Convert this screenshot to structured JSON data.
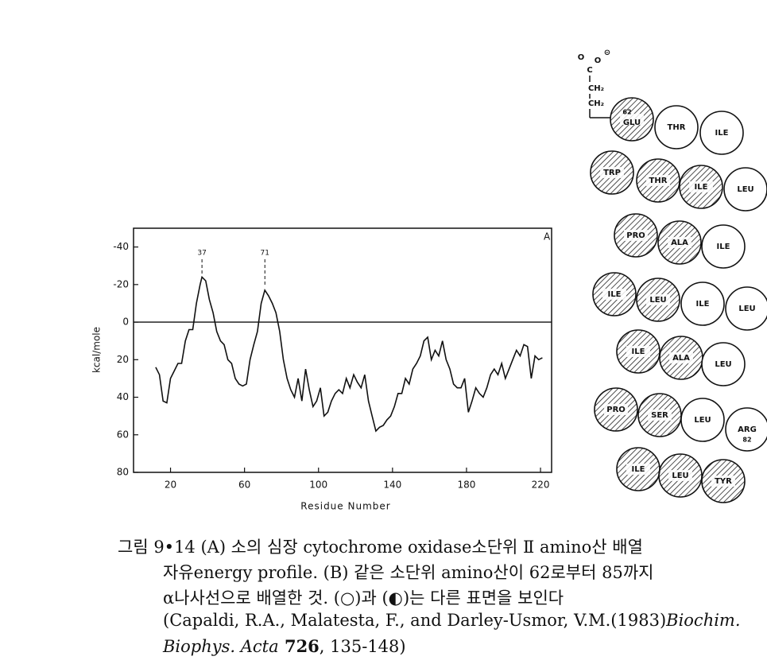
{
  "chart_data": {
    "type": "line",
    "title": "A",
    "xlabel": "Residue Number",
    "ylabel": "kcal/mole",
    "xlim": [
      0,
      226
    ],
    "xticks": [
      20,
      60,
      100,
      140,
      180,
      220
    ],
    "ylim": [
      80,
      -50
    ],
    "yticks": [
      -40,
      -20,
      0,
      20,
      40,
      60,
      80
    ],
    "zero_line": true,
    "annotations": [
      {
        "text": "37",
        "x": 37
      },
      {
        "text": "71",
        "x": 71
      }
    ],
    "series": [
      {
        "color": "#111111",
        "x": [
          12,
          14,
          16,
          18,
          20,
          22,
          24,
          26,
          28,
          30,
          32,
          34,
          36,
          37,
          39,
          41,
          43,
          45,
          47,
          49,
          51,
          53,
          55,
          57,
          59,
          61,
          63,
          65,
          67,
          69,
          71,
          73,
          75,
          77,
          79,
          81,
          83,
          85,
          87,
          89,
          91,
          93,
          95,
          97,
          99,
          101,
          103,
          105,
          107,
          109,
          111,
          113,
          115,
          117,
          119,
          121,
          123,
          125,
          127,
          129,
          131,
          133,
          135,
          137,
          139,
          141,
          143,
          145,
          147,
          149,
          151,
          153,
          155,
          157,
          159,
          161,
          163,
          165,
          167,
          169,
          171,
          173,
          175,
          177,
          179,
          181,
          183,
          185,
          187,
          189,
          191,
          193,
          195,
          197,
          199,
          201,
          203,
          205,
          207,
          209,
          211,
          213,
          215,
          217,
          219,
          221
        ],
        "values": [
          24,
          28,
          42,
          43,
          30,
          26,
          22,
          22,
          10,
          4,
          4,
          -10,
          -20,
          -24,
          -22,
          -12,
          -5,
          5,
          10,
          12,
          20,
          22,
          30,
          33,
          34,
          33,
          20,
          12,
          5,
          -10,
          -17,
          -14,
          -10,
          -5,
          5,
          20,
          30,
          36,
          40,
          30,
          42,
          25,
          36,
          45,
          42,
          35,
          50,
          48,
          42,
          38,
          36,
          38,
          30,
          35,
          28,
          32,
          35,
          28,
          42,
          50,
          58,
          56,
          55,
          52,
          50,
          45,
          38,
          38,
          30,
          33,
          25,
          22,
          18,
          10,
          8,
          20,
          15,
          18,
          10,
          20,
          25,
          33,
          35,
          35,
          30,
          48,
          42,
          35,
          38,
          40,
          35,
          28,
          25,
          28,
          22,
          30,
          25,
          20,
          15,
          18,
          12,
          13,
          30,
          18,
          20,
          19
        ]
      }
    ]
  },
  "diagram": {
    "side_chain": [
      "O",
      "O",
      "⊝",
      "C",
      "CH₂",
      "CH₂"
    ],
    "residues": [
      {
        "label": "GLU",
        "number": "62",
        "hatched": true
      },
      {
        "label": "THR",
        "hatched": false
      },
      {
        "label": "ILE",
        "hatched": false
      },
      {
        "label": "TRP",
        "hatched": true
      },
      {
        "label": "THR",
        "hatched": true
      },
      {
        "label": "ILE",
        "hatched": true
      },
      {
        "label": "LEU",
        "hatched": false
      },
      {
        "label": "PRO",
        "hatched": true
      },
      {
        "label": "ALA",
        "hatched": true
      },
      {
        "label": "ILE",
        "hatched": false
      },
      {
        "label": "ILE",
        "hatched": true
      },
      {
        "label": "LEU",
        "hatched": true
      },
      {
        "label": "ILE",
        "hatched": false
      },
      {
        "label": "LEU",
        "hatched": false
      },
      {
        "label": "ILE",
        "hatched": true
      },
      {
        "label": "ALA",
        "hatched": true
      },
      {
        "label": "LEU",
        "hatched": false
      },
      {
        "label": "PRO",
        "hatched": true
      },
      {
        "label": "SER",
        "hatched": true
      },
      {
        "label": "LEU",
        "hatched": false
      },
      {
        "label": "ARG",
        "number": "82",
        "hatched": false
      },
      {
        "label": "ILE",
        "hatched": true
      },
      {
        "label": "LEU",
        "hatched": true
      },
      {
        "label": "TYR",
        "hatched": true
      }
    ]
  },
  "caption": {
    "line1": "그림 9•14  (A) 소의 심장 cytochrome oxidase소단위 Ⅱ amino산 배열",
    "line2": "자유energy profile. (B) 같은 소단위 amino산이 62로부터 85까지",
    "line3": "α나사선으로 배열한 것. (○)과 (◐)는 다른 표면을 보인다",
    "line4": "(Capaldi, R.A., Malatesta, F., and Darley-Usmor, V.M.(1983)",
    "line4_italic": "Biochim.",
    "line5_italic": "Biophys. Acta",
    "line5_bold": " 726",
    "line5": ", 135-148)"
  }
}
